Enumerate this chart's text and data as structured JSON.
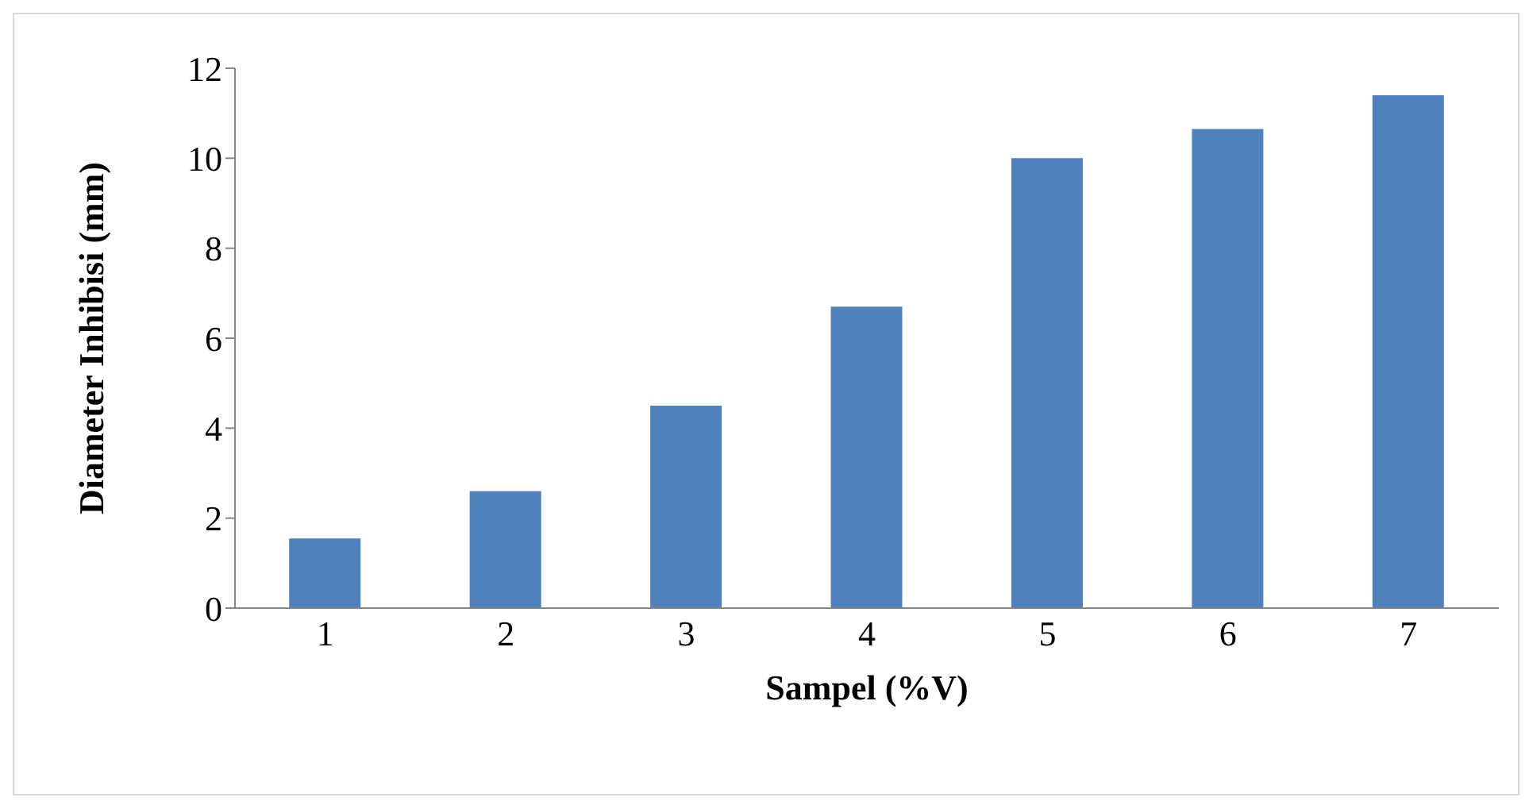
{
  "chart_data": {
    "type": "bar",
    "xlabel": "Sampel (%V)",
    "ylabel": "Diameter Inhibisi (mm)",
    "categories": [
      "1",
      "2",
      "3",
      "4",
      "5",
      "6",
      "7"
    ],
    "values": [
      1.55,
      2.6,
      4.5,
      6.7,
      10.0,
      10.65,
      11.4
    ],
    "color": "#4f81bd",
    "ylim": [
      0,
      12
    ],
    "yticks": [
      0,
      2,
      4,
      6,
      8,
      10,
      12
    ],
    "grid": false,
    "legend": false
  }
}
